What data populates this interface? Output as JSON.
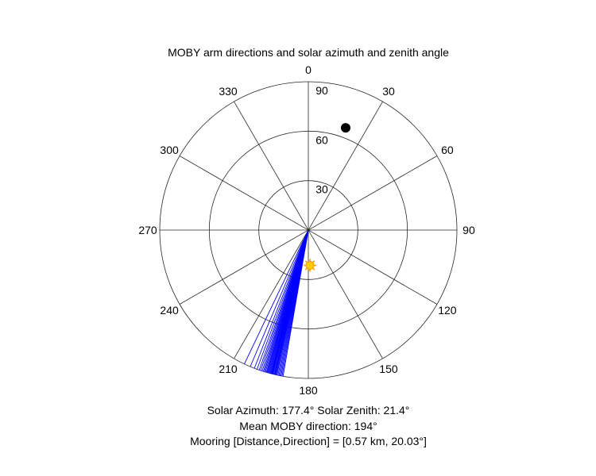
{
  "chart_data": {
    "type": "polar",
    "title": "MOBY arm directions and solar azimuth and zenith angle",
    "angle_ticks": [
      "0",
      "30",
      "60",
      "90",
      "120",
      "150",
      "180",
      "210",
      "240",
      "270",
      "300",
      "330"
    ],
    "radial_ticks": [
      "30",
      "60",
      "90"
    ],
    "radial_max": 90,
    "radial_grid": [
      30,
      60,
      90
    ],
    "angle_grid_step": 30,
    "angle_zero": "top",
    "angle_direction": "clockwise",
    "grid": true,
    "points": [
      {
        "label": "mooring",
        "theta": 20.03,
        "r": 66,
        "color": "#000000"
      },
      {
        "label": "sun",
        "theta": 177.4,
        "r": 21.4,
        "color": "#ffcc00"
      }
    ],
    "moby_arm_directions": [
      189.8,
      190.2,
      190.6,
      191,
      191.4,
      191.8,
      192.2,
      192.5,
      192.8,
      193,
      193.2,
      193.5,
      193.8,
      194,
      194.2,
      194.4,
      194.6,
      194.9,
      195.2,
      195.5,
      195.8,
      196.1,
      196.4,
      196.8,
      197.2,
      197.6,
      198.1,
      198.7,
      199.3,
      200.2,
      201.3,
      203,
      205.5
    ],
    "moby_line_color": "#0000ff",
    "captions": [
      "Solar Azimuth: 177.4°    Solar Zenith: 21.4°",
      "Mean MOBY direction: 194°",
      "Mooring [Distance,Direction] = [0.57 km, 20.03°]"
    ]
  }
}
